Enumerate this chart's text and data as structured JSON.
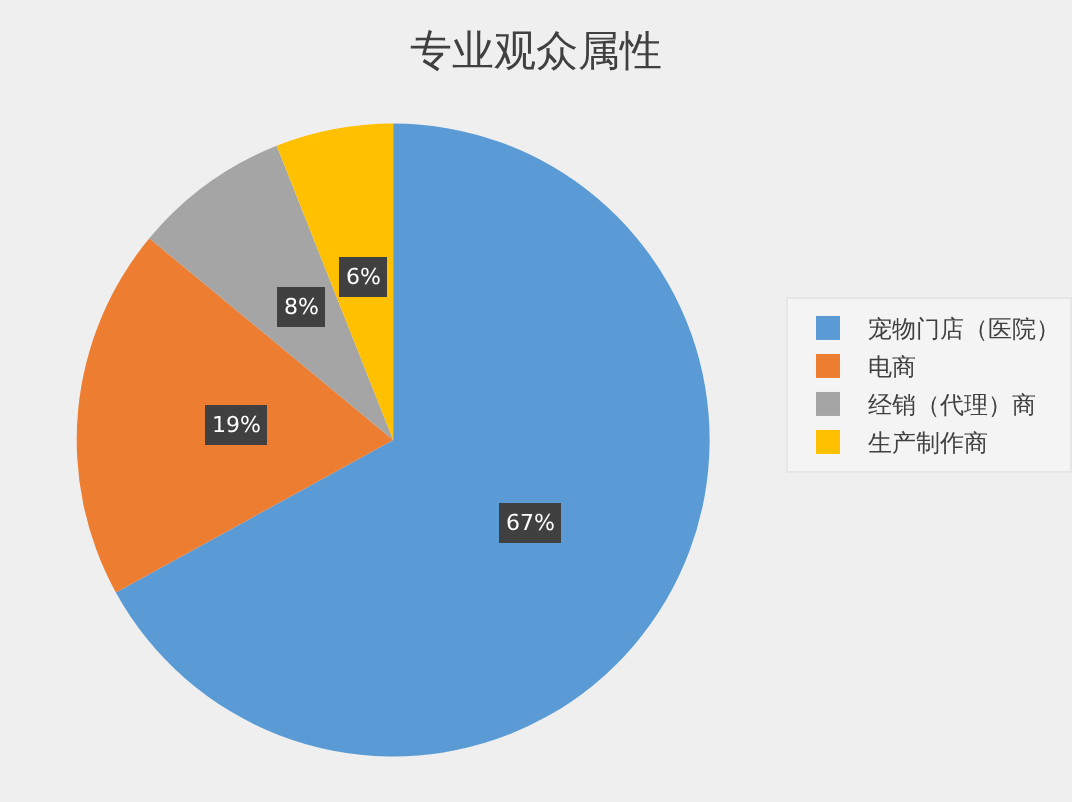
{
  "chart_data": {
    "type": "pie",
    "title": "专业观众属性",
    "categories": [
      "宠物门店（医院）",
      "电商",
      "经销（代理）商",
      "生产制作商"
    ],
    "values": [
      67,
      19,
      8,
      6
    ],
    "value_labels": [
      "67%",
      "19%",
      "8%",
      "6%"
    ],
    "colors": [
      "#5b9bd5",
      "#ed7d31",
      "#a5a5a5",
      "#ffc000"
    ],
    "legend": "right"
  }
}
